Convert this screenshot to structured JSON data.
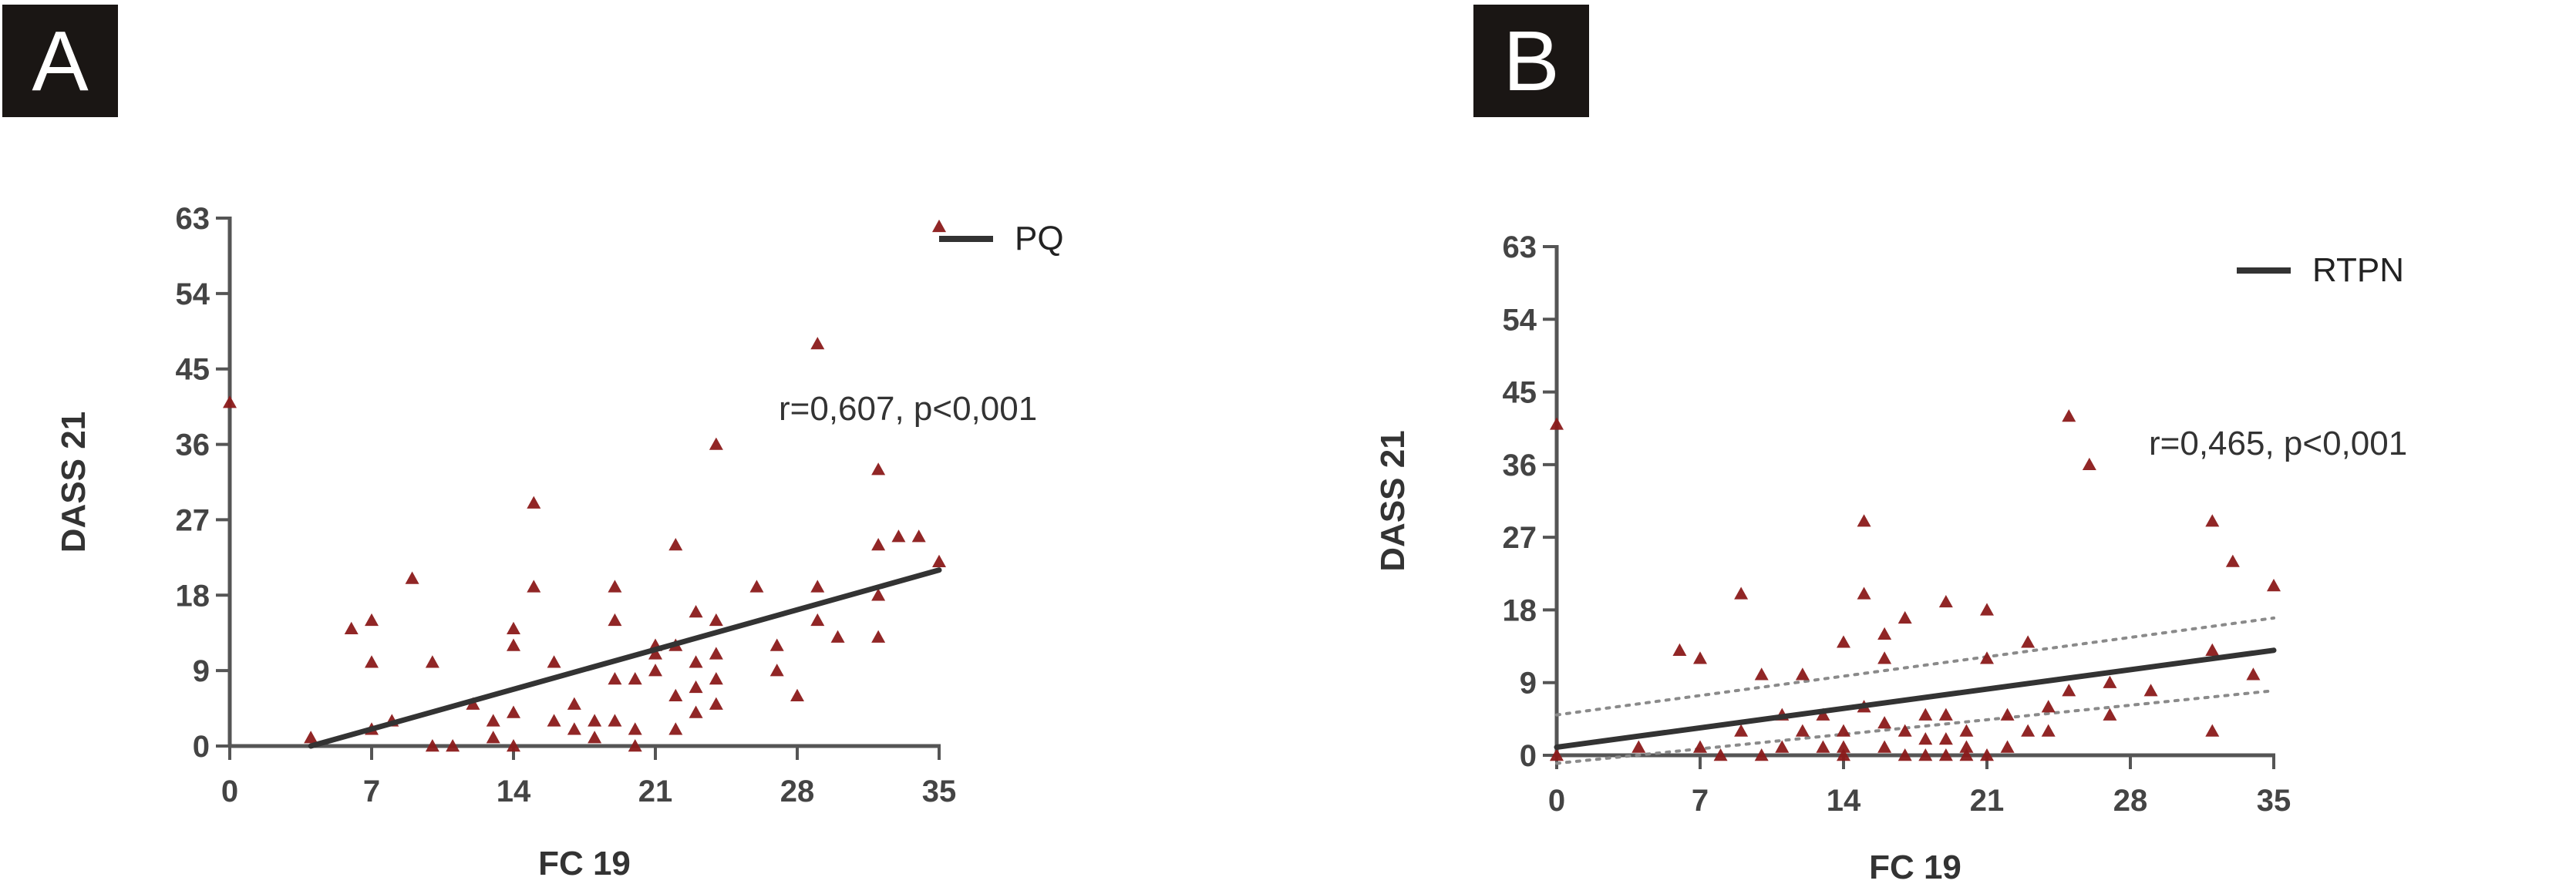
{
  "chart_data": [
    {
      "panel": "A",
      "type": "scatter",
      "xlabel": "FC 19",
      "ylabel": "DASS 21",
      "xticks": [
        0,
        7,
        14,
        21,
        28,
        35
      ],
      "yticks": [
        0,
        9,
        18,
        27,
        36,
        45,
        54,
        63
      ],
      "xlim": [
        0,
        35
      ],
      "ylim": [
        0,
        63
      ],
      "legend": {
        "label": "PQ",
        "position": "top-right"
      },
      "annotation": "r=0,607, p<0,001",
      "point_color": "#8b1a1a",
      "line_color": "#333333",
      "regression": {
        "x": [
          4,
          35
        ],
        "y": [
          0,
          21
        ]
      },
      "confidence_band": null,
      "points": [
        [
          0,
          41
        ],
        [
          4,
          1
        ],
        [
          6,
          14
        ],
        [
          7,
          15
        ],
        [
          7,
          10
        ],
        [
          7,
          2
        ],
        [
          8,
          3
        ],
        [
          9,
          20
        ],
        [
          10,
          10
        ],
        [
          10,
          0
        ],
        [
          11,
          0
        ],
        [
          12,
          5
        ],
        [
          13,
          1
        ],
        [
          13,
          3
        ],
        [
          14,
          14
        ],
        [
          14,
          12
        ],
        [
          14,
          4
        ],
        [
          14,
          0
        ],
        [
          15,
          29
        ],
        [
          15,
          19
        ],
        [
          16,
          10
        ],
        [
          16,
          3
        ],
        [
          17,
          5
        ],
        [
          17,
          2
        ],
        [
          18,
          3
        ],
        [
          18,
          1
        ],
        [
          19,
          19
        ],
        [
          19,
          15
        ],
        [
          19,
          8
        ],
        [
          19,
          3
        ],
        [
          20,
          8
        ],
        [
          20,
          2
        ],
        [
          20,
          0
        ],
        [
          21,
          12
        ],
        [
          21,
          9
        ],
        [
          21,
          11
        ],
        [
          22,
          24
        ],
        [
          22,
          12
        ],
        [
          22,
          6
        ],
        [
          22,
          2
        ],
        [
          23,
          16
        ],
        [
          23,
          10
        ],
        [
          23,
          7
        ],
        [
          23,
          4
        ],
        [
          24,
          36
        ],
        [
          24,
          15
        ],
        [
          24,
          11
        ],
        [
          24,
          8
        ],
        [
          24,
          5
        ],
        [
          26,
          19
        ],
        [
          27,
          12
        ],
        [
          27,
          9
        ],
        [
          28,
          6
        ],
        [
          29,
          48
        ],
        [
          29,
          19
        ],
        [
          29,
          15
        ],
        [
          30,
          13
        ],
        [
          32,
          33
        ],
        [
          32,
          24
        ],
        [
          32,
          18
        ],
        [
          32,
          13
        ],
        [
          33,
          25
        ],
        [
          34,
          25
        ],
        [
          35,
          62
        ],
        [
          35,
          22
        ]
      ]
    },
    {
      "panel": "B",
      "type": "scatter",
      "xlabel": "FC 19",
      "ylabel": "DASS 21",
      "xticks": [
        0,
        7,
        14,
        21,
        28,
        35
      ],
      "yticks": [
        0,
        9,
        18,
        27,
        36,
        45,
        54,
        63
      ],
      "xlim": [
        0,
        35
      ],
      "ylim": [
        0,
        63
      ],
      "legend": {
        "label": "RTPN",
        "position": "top-right"
      },
      "annotation": "r=0,465, p<0,001",
      "point_color": "#8b1a1a",
      "line_color": "#333333",
      "regression": {
        "x": [
          0,
          35
        ],
        "y": [
          1,
          13
        ]
      },
      "confidence_band": {
        "upper": {
          "x": [
            0,
            35
          ],
          "y": [
            5,
            17
          ]
        },
        "lower": {
          "x": [
            0,
            35
          ],
          "y": [
            -1,
            8
          ]
        }
      },
      "points": [
        [
          0,
          41
        ],
        [
          0,
          0
        ],
        [
          4,
          1
        ],
        [
          6,
          13
        ],
        [
          7,
          12
        ],
        [
          7,
          1
        ],
        [
          8,
          0
        ],
        [
          9,
          20
        ],
        [
          9,
          3
        ],
        [
          10,
          10
        ],
        [
          10,
          0
        ],
        [
          11,
          5
        ],
        [
          11,
          1
        ],
        [
          12,
          10
        ],
        [
          12,
          3
        ],
        [
          13,
          1
        ],
        [
          13,
          5
        ],
        [
          14,
          14
        ],
        [
          14,
          3
        ],
        [
          14,
          1
        ],
        [
          14,
          0
        ],
        [
          15,
          29
        ],
        [
          15,
          20
        ],
        [
          15,
          6
        ],
        [
          16,
          15
        ],
        [
          16,
          12
        ],
        [
          16,
          4
        ],
        [
          16,
          1
        ],
        [
          17,
          17
        ],
        [
          17,
          3
        ],
        [
          17,
          0
        ],
        [
          18,
          2
        ],
        [
          18,
          5
        ],
        [
          18,
          0
        ],
        [
          19,
          19
        ],
        [
          19,
          5
        ],
        [
          19,
          2
        ],
        [
          19,
          0
        ],
        [
          20,
          3
        ],
        [
          20,
          1
        ],
        [
          20,
          0
        ],
        [
          21,
          18
        ],
        [
          21,
          12
        ],
        [
          21,
          0
        ],
        [
          22,
          5
        ],
        [
          22,
          1
        ],
        [
          23,
          14
        ],
        [
          23,
          3
        ],
        [
          24,
          6
        ],
        [
          24,
          3
        ],
        [
          25,
          42
        ],
        [
          25,
          8
        ],
        [
          26,
          36
        ],
        [
          27,
          9
        ],
        [
          27,
          5
        ],
        [
          29,
          8
        ],
        [
          32,
          29
        ],
        [
          32,
          13
        ],
        [
          32,
          3
        ],
        [
          33,
          24
        ],
        [
          34,
          10
        ],
        [
          35,
          21
        ]
      ]
    }
  ]
}
